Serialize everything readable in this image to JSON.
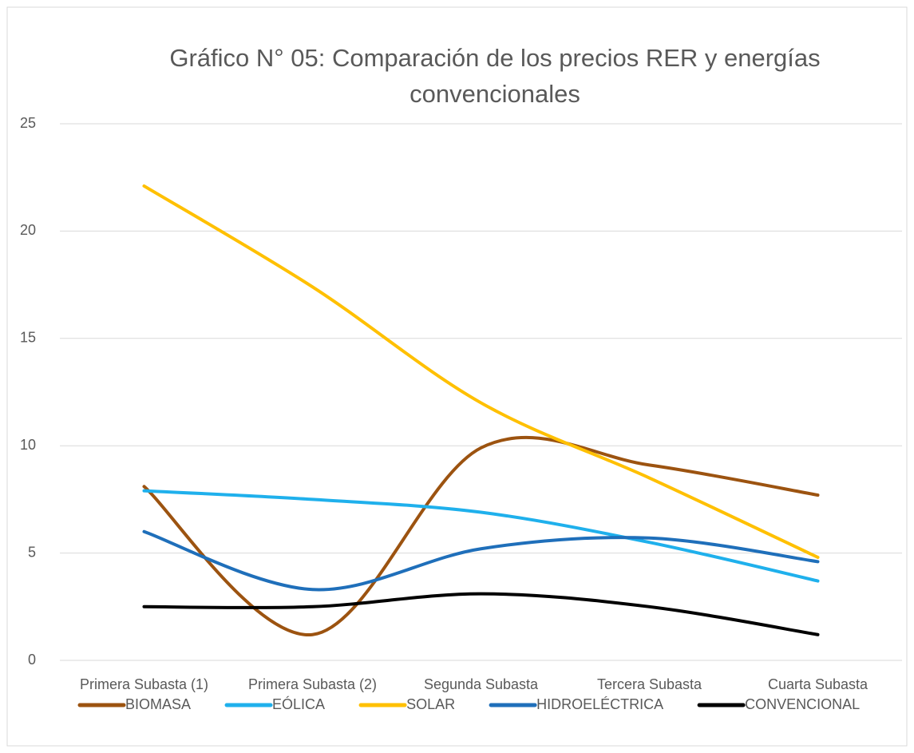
{
  "chart_data": {
    "type": "line",
    "title": "Gráfico N° 05: Comparación de los precios RER y energías convencionales",
    "categories": [
      "Primera Subasta (1)",
      "Primera Subasta (2)",
      "Segunda Subasta",
      "Tercera Subasta",
      "Cuarta Subasta"
    ],
    "series": [
      {
        "name": "BIOMASA",
        "color": "#9c5310",
        "values": [
          8.1,
          1.2,
          9.9,
          9.1,
          7.7
        ]
      },
      {
        "name": "EÓLICA",
        "color": "#1fb0ec",
        "values": [
          7.9,
          7.5,
          6.9,
          5.5,
          3.7
        ]
      },
      {
        "name": "SOLAR",
        "color": "#ffc000",
        "values": [
          22.1,
          17.4,
          12.0,
          8.5,
          4.8
        ]
      },
      {
        "name": "HIDROELÉCTRICA",
        "color": "#1f6fba",
        "values": [
          6.0,
          3.3,
          5.2,
          5.7,
          4.6
        ]
      },
      {
        "name": "CONVENCIONAL",
        "color": "#000000",
        "values": [
          2.5,
          2.5,
          3.1,
          2.5,
          1.2
        ]
      }
    ],
    "ylim": [
      0,
      25
    ],
    "yticks": [
      0,
      5,
      10,
      15,
      20,
      25
    ],
    "grid": true,
    "smooth": true,
    "legend": "bottom"
  }
}
